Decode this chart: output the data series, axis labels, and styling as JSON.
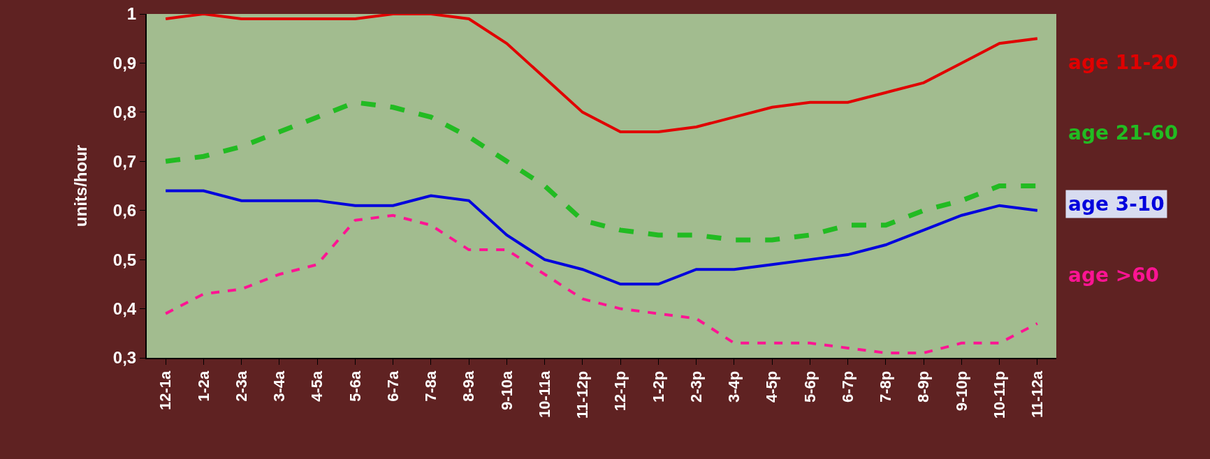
{
  "chart_data": {
    "type": "line",
    "ylabel": "units/hour",
    "categories": [
      "12-1a",
      "1-2a",
      "2-3a",
      "3-4a",
      "4-5a",
      "5-6a",
      "6-7a",
      "7-8a",
      "8-9a",
      "9-10a",
      "10-11a",
      "11-12p",
      "12-1p",
      "1-2p",
      "2-3p",
      "3-4p",
      "4-5p",
      "5-6p",
      "6-7p",
      "7-8p",
      "8-9p",
      "9-10p",
      "10-11p",
      "11-12a"
    ],
    "ylim": [
      0.3,
      1
    ],
    "yticks": [
      {
        "value": 0.3,
        "label": "0,3"
      },
      {
        "value": 0.4,
        "label": "0,4"
      },
      {
        "value": 0.5,
        "label": "0,5"
      },
      {
        "value": 0.6,
        "label": "0,6"
      },
      {
        "value": 0.7,
        "label": "0,7"
      },
      {
        "value": 0.8,
        "label": "0,8"
      },
      {
        "value": 0.9,
        "label": "0,9"
      },
      {
        "value": 1,
        "label": "1"
      }
    ],
    "grid": false,
    "legend": false,
    "marker": "none",
    "series": [
      {
        "name": "age 11-20",
        "color": "#e00000",
        "line_style": "solid",
        "values": [
          0.99,
          1,
          0.99,
          0.99,
          0.99,
          0.99,
          1,
          1,
          0.99,
          0.94,
          0.87,
          0.8,
          0.76,
          0.76,
          0.77,
          0.79,
          0.81,
          0.82,
          0.82,
          0.84,
          0.86,
          0.9,
          0.94,
          0.95
        ]
      },
      {
        "name": "age 21-60",
        "color": "#22bb22",
        "line_style": "dashed",
        "values": [
          0.7,
          0.71,
          0.73,
          0.76,
          0.79,
          0.82,
          0.81,
          0.79,
          0.75,
          0.7,
          0.65,
          0.58,
          0.56,
          0.55,
          0.55,
          0.54,
          0.54,
          0.55,
          0.57,
          0.57,
          0.6,
          0.62,
          0.65,
          0.65
        ]
      },
      {
        "name": "age 3-10",
        "color": "#0000dd",
        "line_style": "solid",
        "values": [
          0.64,
          0.64,
          0.62,
          0.62,
          0.62,
          0.61,
          0.61,
          0.63,
          0.62,
          0.55,
          0.5,
          0.48,
          0.45,
          0.45,
          0.48,
          0.48,
          0.49,
          0.5,
          0.51,
          0.53,
          0.56,
          0.59,
          0.61,
          0.6
        ]
      },
      {
        "name": "age >60",
        "color": "#ff1493",
        "line_style": "dashed",
        "values": [
          0.39,
          0.43,
          0.44,
          0.47,
          0.49,
          0.58,
          0.59,
          0.57,
          0.52,
          0.52,
          0.47,
          0.42,
          0.4,
          0.39,
          0.38,
          0.33,
          0.33,
          0.33,
          0.32,
          0.31,
          0.31,
          0.33,
          0.33,
          0.37
        ]
      }
    ]
  }
}
